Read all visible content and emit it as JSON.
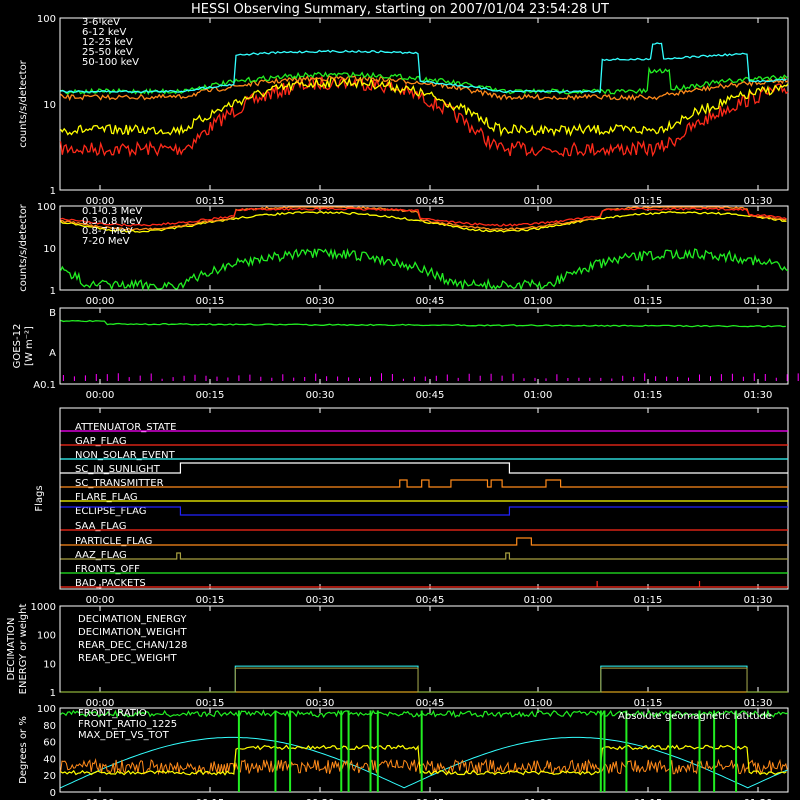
{
  "title": "HESSI Observing Summary, starting on 2007/01/04 23:54:28 UT",
  "time_ticks": [
    "00:00",
    "00:15",
    "00:30",
    "00:45",
    "01:00",
    "01:15",
    "01:30"
  ],
  "colors": {
    "red": "#ff2a1a",
    "orange": "#ff8a1a",
    "yellow": "#ffff00",
    "green": "#22ee22",
    "cyan": "#33ffff",
    "magenta": "#ff00ff",
    "blue": "#2222ff",
    "olive": "#a8a040",
    "white": "#ffffff"
  },
  "chart_data": [
    {
      "id": "panel1",
      "type": "line",
      "ylabel": "counts/s/detector",
      "yscale": "log",
      "ylim": [
        1,
        100
      ],
      "yticks": [
        "1",
        "10",
        "100"
      ],
      "legend": [
        {
          "label": "3-6 keV",
          "color": "red"
        },
        {
          "label": "6-12 keV",
          "color": "orange"
        },
        {
          "label": "12-25 keV",
          "color": "yellow"
        },
        {
          "label": "25-50 keV",
          "color": "green"
        },
        {
          "label": "50-100 keV",
          "color": "cyan"
        }
      ]
    },
    {
      "id": "panel2",
      "type": "line",
      "ylabel": "counts/s/detector",
      "yscale": "log",
      "ylim": [
        1,
        100
      ],
      "yticks": [
        "1",
        "10",
        "100"
      ],
      "legend": [
        {
          "label": "0.1-0.3 MeV",
          "color": "red"
        },
        {
          "label": "0.3-0.8 MeV",
          "color": "orange"
        },
        {
          "label": "0.8-7 MeV",
          "color": "yellow"
        },
        {
          "label": "7-20 MeV",
          "color": "green"
        }
      ]
    },
    {
      "id": "panel3",
      "type": "line",
      "ylabel": "GOES-12",
      "ylabel2": "[W m⁻²]",
      "yticks": [
        "A0.1",
        "A",
        "B"
      ]
    },
    {
      "id": "panel4",
      "type": "line",
      "ylabel": "Flags",
      "flags": [
        {
          "label": "ATTENUATOR_STATE",
          "color": "magenta"
        },
        {
          "label": "GAP_FLAG",
          "color": "red"
        },
        {
          "label": "NON_SOLAR_EVENT",
          "color": "cyan"
        },
        {
          "label": "SC_IN_SUNLIGHT",
          "color": "white"
        },
        {
          "label": "SC_TRANSMITTER",
          "color": "orange"
        },
        {
          "label": "FLARE_FLAG",
          "color": "yellow"
        },
        {
          "label": "ECLIPSE_FLAG",
          "color": "blue"
        },
        {
          "label": "SAA_FLAG",
          "color": "red"
        },
        {
          "label": "PARTICLE_FLAG",
          "color": "orange"
        },
        {
          "label": "AAZ_FLAG",
          "color": "olive"
        },
        {
          "label": "FRONTS_OFF",
          "color": "green"
        },
        {
          "label": "BAD_PACKETS",
          "color": "red"
        }
      ]
    },
    {
      "id": "panel5",
      "type": "line",
      "ylabel": "DECIMATION",
      "ylabel2": "ENERGY or weight",
      "yscale": "log",
      "yticks": [
        "1",
        "10",
        "100",
        "1000"
      ],
      "legend": [
        {
          "label": "DECIMATION_ENERGY",
          "color": "green"
        },
        {
          "label": "DECIMATION_WEIGHT",
          "color": "orange"
        },
        {
          "label": "REAR_DEC_CHAN/128",
          "color": "cyan"
        },
        {
          "label": "REAR_DEC_WEIGHT",
          "color": "olive"
        }
      ]
    },
    {
      "id": "panel6",
      "type": "line",
      "ylabel": "Degrees or %",
      "ylim": [
        0,
        100
      ],
      "yticks": [
        "0",
        "20",
        "40",
        "60",
        "80",
        "100"
      ],
      "legend": [
        {
          "label": "FRONT_RATIO",
          "color": "green"
        },
        {
          "label": "FRONT_RATIO_1225",
          "color": "yellow"
        },
        {
          "label": "MAX_DET_VS_TOT",
          "color": "orange"
        }
      ],
      "annotation": {
        "label": "Absolute geomagnetic latitude",
        "color": "cyan"
      }
    }
  ]
}
